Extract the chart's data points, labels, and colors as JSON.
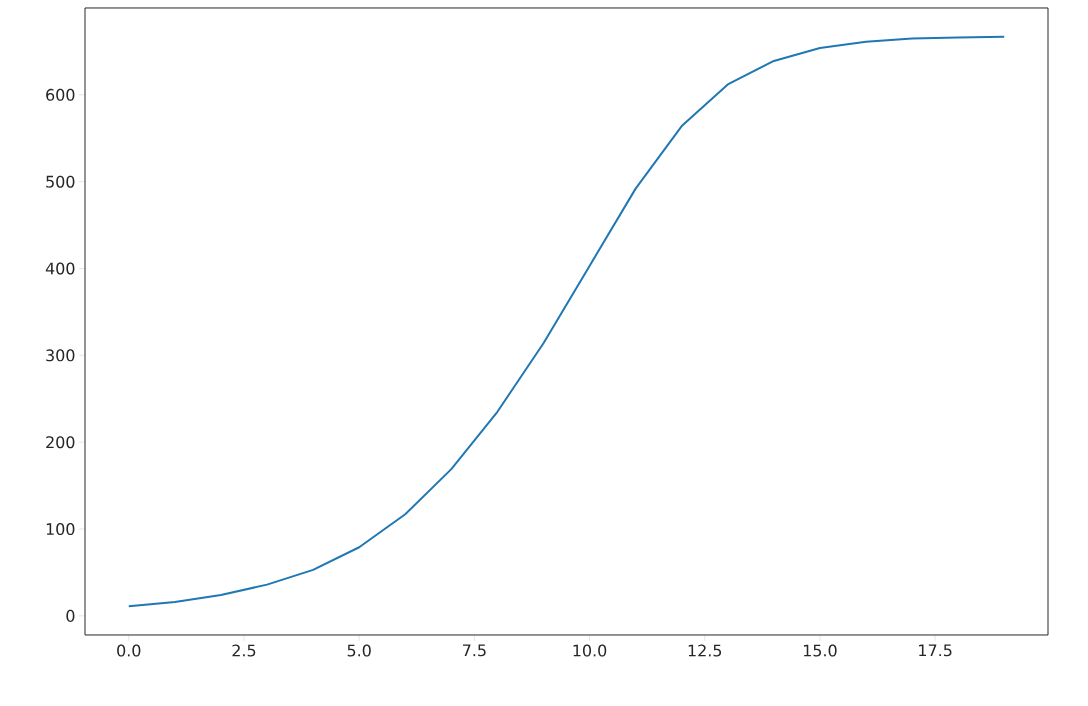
{
  "chart_data": {
    "type": "line",
    "color": "#1f77b4",
    "x": [
      0,
      1,
      2,
      3,
      4,
      5,
      6,
      7,
      8,
      9,
      10,
      11,
      12,
      13,
      14,
      15,
      16,
      17,
      18,
      19
    ],
    "values": [
      11,
      16,
      24,
      36,
      53,
      79,
      117,
      169,
      235,
      314,
      403,
      492,
      564,
      612,
      639,
      654,
      661,
      665,
      666,
      667
    ],
    "xlim": [
      -0.95,
      19.95
    ],
    "ylim": [
      -22,
      700
    ],
    "xticks": [
      {
        "value": 0,
        "label": "0.0"
      },
      {
        "value": 2.5,
        "label": "2.5"
      },
      {
        "value": 5,
        "label": "5.0"
      },
      {
        "value": 7.5,
        "label": "7.5"
      },
      {
        "value": 10,
        "label": "10.0"
      },
      {
        "value": 12.5,
        "label": "12.5"
      },
      {
        "value": 15,
        "label": "15.0"
      },
      {
        "value": 17.5,
        "label": "17.5"
      }
    ],
    "yticks": [
      0,
      100,
      200,
      300,
      400,
      500,
      600
    ]
  }
}
